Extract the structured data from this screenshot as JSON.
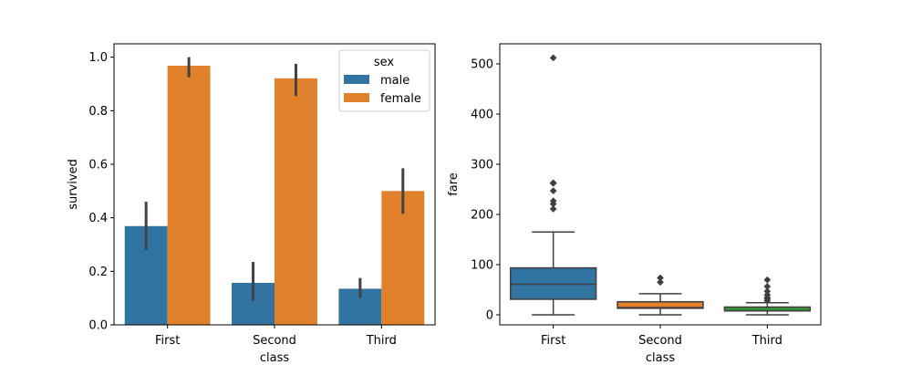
{
  "colors": {
    "male": "#3274a1",
    "female": "#e1812c",
    "first": "#3274a1",
    "second": "#e1812c",
    "third": "#3a923a",
    "errorbar": "#424242",
    "box_line": "#3f3f3f"
  },
  "chart_data": [
    {
      "type": "bar",
      "xlabel": "class",
      "ylabel": "survived",
      "categories": [
        "First",
        "Second",
        "Third"
      ],
      "ylim": [
        0,
        1.05
      ],
      "yticks": [
        "0.0",
        "0.2",
        "0.4",
        "0.6",
        "0.8",
        "1.0"
      ],
      "legend": {
        "title": "sex",
        "placement": "upper-right"
      },
      "series": [
        {
          "name": "male",
          "values": [
            0.369,
            0.157,
            0.135
          ],
          "ci": [
            [
              0.28,
              0.46
            ],
            [
              0.09,
              0.235
            ],
            [
              0.1,
              0.175
            ]
          ]
        },
        {
          "name": "female",
          "values": [
            0.968,
            0.921,
            0.5
          ],
          "ci": [
            [
              0.925,
              1.0
            ],
            [
              0.855,
              0.975
            ],
            [
              0.415,
              0.585
            ]
          ]
        }
      ]
    },
    {
      "type": "box",
      "xlabel": "class",
      "ylabel": "fare",
      "categories": [
        "First",
        "Second",
        "Third"
      ],
      "ylim": [
        -20,
        540
      ],
      "yticks": [
        "0",
        "100",
        "200",
        "300",
        "400",
        "500"
      ],
      "boxes": [
        {
          "min": 0,
          "q1": 31,
          "median": 61,
          "q3": 93.5,
          "max": 164.9,
          "outliers": [
            211,
            221,
            227,
            247,
            262,
            263,
            512
          ]
        },
        {
          "min": 0,
          "q1": 13,
          "median": 14.25,
          "q3": 26,
          "max": 42,
          "outliers": [
            65,
            73.5
          ]
        },
        {
          "min": 0,
          "q1": 7.75,
          "median": 8.05,
          "q3": 15.5,
          "max": 24.2,
          "outliers": [
            27.9,
            31.3,
            34.4,
            39.7,
            46.9,
            56.5,
            69.6
          ]
        }
      ]
    }
  ]
}
